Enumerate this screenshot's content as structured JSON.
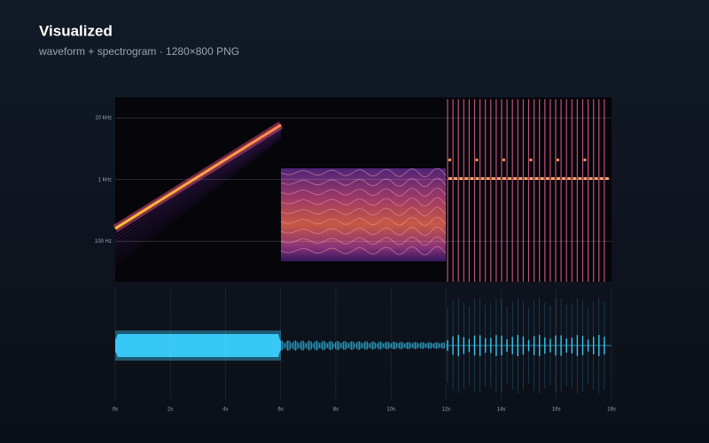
{
  "chart_data": {
    "type": "spectrogram",
    "title": "Visualized",
    "subtitle": "waveform + spectrogram · 1280×800 PNG",
    "xlim": [
      0,
      18
    ],
    "xticks": [
      {
        "value": 0,
        "label": "0s"
      },
      {
        "value": 2,
        "label": "2s"
      },
      {
        "value": 4,
        "label": "4s"
      },
      {
        "value": 6,
        "label": "6s"
      },
      {
        "value": 8,
        "label": "8s"
      },
      {
        "value": 10,
        "label": "10s"
      },
      {
        "value": 12,
        "label": "12s"
      },
      {
        "value": 14,
        "label": "14s"
      },
      {
        "value": 16,
        "label": "16s"
      },
      {
        "value": 18,
        "label": "18s"
      }
    ],
    "ylim": [
      22,
      21500
    ],
    "log_y": true,
    "yticks": [
      {
        "value": 100,
        "label": "100 Hz"
      },
      {
        "value": 1000,
        "label": "1 kHz"
      },
      {
        "value": 10000,
        "label": "10 kHz"
      }
    ],
    "grid": true
  }
}
